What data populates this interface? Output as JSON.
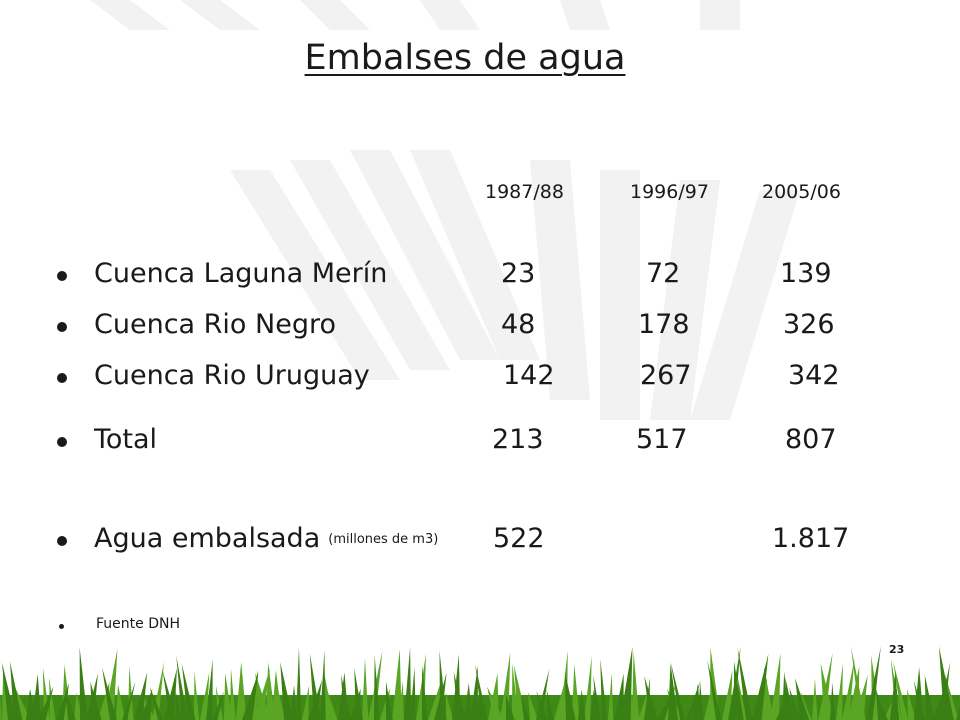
{
  "title": "Embalses de agua",
  "columns": [
    "1987/88",
    "1996/97",
    "2005/06"
  ],
  "rows": [
    {
      "label": "Cuenca Laguna Merín",
      "values": [
        "23",
        "72",
        "139"
      ]
    },
    {
      "label": "Cuenca Rio  Negro",
      "values": [
        "48",
        "178",
        "326"
      ]
    },
    {
      "label": "Cuenca Rio Uruguay",
      "values": [
        "142",
        "267",
        "342"
      ]
    },
    {
      "label": "Total",
      "values": [
        "213",
        "517",
        "807"
      ]
    }
  ],
  "agua": {
    "label": "Agua embalsada",
    "unit": "(millones de m3)",
    "values": [
      "522",
      "1.817"
    ]
  },
  "source": "Fuente DNH",
  "page_number": "23",
  "colors": {
    "text": "#1a1a1a",
    "grass": "#4f9a1e",
    "stripes": "#f1f1f1"
  }
}
